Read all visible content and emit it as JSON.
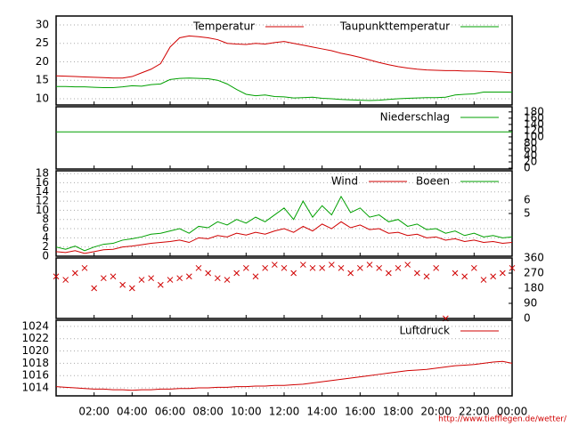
{
  "x": [
    0,
    0.5,
    1,
    1.5,
    2,
    2.5,
    3,
    3.5,
    4,
    4.5,
    5,
    5.5,
    6,
    6.5,
    7,
    7.5,
    8,
    8.5,
    9,
    9.5,
    10,
    10.5,
    11,
    11.5,
    12,
    12.5,
    13,
    13.5,
    14,
    14.5,
    15,
    15.5,
    16,
    16.5,
    17,
    17.5,
    18,
    18.5,
    19,
    19.5,
    20,
    20.5,
    21,
    21.5,
    22,
    22.5,
    23,
    23.5,
    24
  ],
  "xlim": [
    0,
    24
  ],
  "xticks": [
    {
      "value": 2,
      "label": "02:00"
    },
    {
      "value": 4,
      "label": "04:00"
    },
    {
      "value": 6,
      "label": "06:00"
    },
    {
      "value": 8,
      "label": "08:00"
    },
    {
      "value": 10,
      "label": "10:00"
    },
    {
      "value": 12,
      "label": "12:00"
    },
    {
      "value": 14,
      "label": "14:00"
    },
    {
      "value": 16,
      "label": "16:00"
    },
    {
      "value": 18,
      "label": "18:00"
    },
    {
      "value": 20,
      "label": "20:00"
    },
    {
      "value": 22,
      "label": "22:00"
    },
    {
      "value": 24,
      "label": "00:00"
    }
  ],
  "footer": "http://www.tiefflegen.de/wetter/",
  "chart_data": [
    {
      "type": "line",
      "ylim": [
        8.3,
        32.4
      ],
      "yticks": [
        10,
        15,
        20,
        25,
        30
      ],
      "grid": true,
      "series": [
        {
          "name": "Temperatur",
          "color": "#d00000",
          "values": [
            16.2,
            16.1,
            16,
            15.9,
            15.8,
            15.7,
            15.6,
            15.6,
            16.0,
            17.0,
            18.0,
            19.5,
            24.0,
            26.5,
            27.0,
            26.8,
            26.5,
            26.0,
            25.0,
            24.8,
            24.7,
            25.0,
            24.8,
            25.2,
            25.5,
            25.0,
            24.5,
            24.0,
            23.5,
            23.0,
            22.3,
            21.8,
            21.2,
            20.5,
            19.8,
            19.2,
            18.7,
            18.3,
            18.0,
            17.8,
            17.7,
            17.6,
            17.6,
            17.5,
            17.5,
            17.4,
            17.3,
            17.2,
            17.0
          ]
        },
        {
          "name": "Taupunkttemperatur",
          "color": "#00a000",
          "values": [
            13.3,
            13.3,
            13.2,
            13.2,
            13.1,
            13.0,
            13.0,
            13.2,
            13.5,
            13.4,
            13.8,
            14.0,
            15.2,
            15.5,
            15.6,
            15.5,
            15.4,
            15.0,
            14.0,
            12.5,
            11.2,
            10.8,
            11.0,
            10.6,
            10.5,
            10.2,
            10.3,
            10.4,
            10.1,
            10.0,
            9.8,
            9.7,
            9.6,
            9.5,
            9.6,
            9.8,
            10.0,
            10.1,
            10.2,
            10.3,
            10.3,
            10.4,
            11.0,
            11.2,
            11.3,
            11.8,
            11.8,
            11.8,
            11.8
          ]
        }
      ]
    },
    {
      "type": "line",
      "y2lim": [
        -2.8,
        196.6
      ],
      "y2ticks": [
        0,
        20,
        40,
        60,
        80,
        100,
        120,
        140,
        160,
        180
      ],
      "grid": false,
      "series": [
        {
          "name": "Niederschlag",
          "color": "#00a000",
          "axis": "y2",
          "x": [
            0,
            24
          ],
          "values": [
            116,
            116
          ]
        }
      ]
    },
    {
      "type": "line",
      "ylim": [
        0,
        18.6
      ],
      "yticks": [
        0,
        2,
        4,
        6,
        8,
        10,
        12,
        14,
        16,
        18
      ],
      "y2lim": [
        1.8,
        8.2
      ],
      "y2ticks": [
        5,
        6
      ],
      "grid": true,
      "series": [
        {
          "name": "Wind",
          "color": "#d00000",
          "values": [
            1.0,
            0.8,
            1.2,
            0.6,
            1.0,
            1.4,
            1.5,
            2.0,
            2.2,
            2.5,
            2.8,
            3.0,
            3.2,
            3.5,
            3.0,
            4.0,
            3.8,
            4.5,
            4.2,
            5.0,
            4.6,
            5.2,
            4.8,
            5.5,
            6.0,
            5.2,
            6.5,
            5.5,
            7.0,
            6.0,
            7.5,
            6.2,
            6.8,
            5.8,
            6.0,
            5.0,
            5.2,
            4.5,
            4.8,
            4.0,
            4.2,
            3.5,
            3.8,
            3.2,
            3.5,
            3.0,
            3.2,
            2.8,
            3.0
          ]
        },
        {
          "name": "Boeen",
          "color": "#00a000",
          "values": [
            2.0,
            1.5,
            2.2,
            1.2,
            2.0,
            2.6,
            2.8,
            3.5,
            3.8,
            4.2,
            4.8,
            5.0,
            5.5,
            6.0,
            5.0,
            6.5,
            6.2,
            7.5,
            6.8,
            8.0,
            7.2,
            8.5,
            7.5,
            9.0,
            10.5,
            8.0,
            12.0,
            8.5,
            11.0,
            9.0,
            13.0,
            9.5,
            10.5,
            8.5,
            9.0,
            7.5,
            8.0,
            6.5,
            7.0,
            5.8,
            6.0,
            5.0,
            5.5,
            4.5,
            5.0,
            4.2,
            4.5,
            4.0,
            4.2
          ]
        }
      ]
    },
    {
      "type": "scatter",
      "y2lim": [
        0,
        360
      ],
      "y2ticks": [
        0,
        90,
        180,
        270,
        360
      ],
      "grid": false,
      "series": [
        {
          "color": "#d00000",
          "axis": "y2",
          "values": [
            250,
            230,
            270,
            300,
            180,
            240,
            250,
            200,
            180,
            230,
            240,
            200,
            230,
            240,
            250,
            300,
            270,
            240,
            230,
            270,
            300,
            250,
            300,
            320,
            300,
            270,
            320,
            300,
            300,
            320,
            300,
            270,
            300,
            320,
            300,
            270,
            300,
            320,
            270,
            250,
            300,
            0,
            270,
            250,
            300,
            230,
            250,
            270,
            300
          ]
        }
      ]
    },
    {
      "type": "line",
      "ylim": [
        1012.7,
        1025
      ],
      "yticks": [
        1014,
        1016,
        1018,
        1020,
        1022,
        1024
      ],
      "grid": true,
      "series": [
        {
          "name": "Luftdruck",
          "color": "#d00000",
          "values": [
            1014.2,
            1014.1,
            1014.0,
            1013.9,
            1013.8,
            1013.8,
            1013.7,
            1013.7,
            1013.6,
            1013.7,
            1013.7,
            1013.8,
            1013.8,
            1013.9,
            1013.9,
            1014.0,
            1014.0,
            1014.1,
            1014.1,
            1014.2,
            1014.2,
            1014.3,
            1014.3,
            1014.4,
            1014.4,
            1014.5,
            1014.6,
            1014.8,
            1015.0,
            1015.2,
            1015.4,
            1015.6,
            1015.8,
            1016.0,
            1016.2,
            1016.4,
            1016.6,
            1016.8,
            1016.9,
            1017.0,
            1017.2,
            1017.4,
            1017.6,
            1017.7,
            1017.8,
            1018.0,
            1018.2,
            1018.3,
            1018.0
          ]
        }
      ]
    }
  ]
}
